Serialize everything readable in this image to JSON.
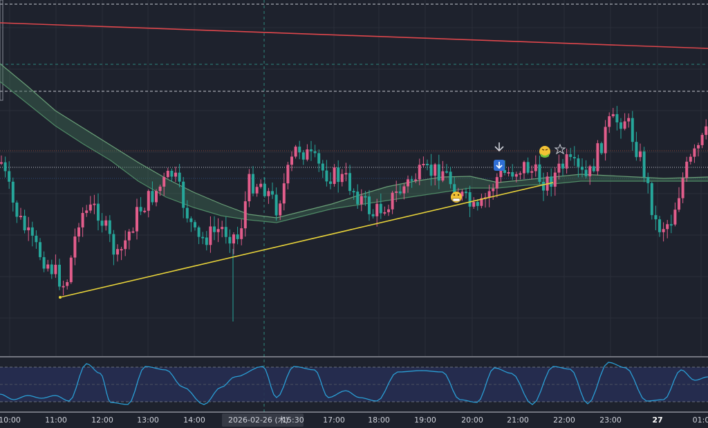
{
  "chart_data": {
    "type": "candlestick",
    "x_ticks": [
      "10:00",
      "11:00",
      "12:00",
      "13:00",
      "14:00",
      "15:30",
      "17:00",
      "18:00",
      "19:00",
      "20:00",
      "21:00",
      "22:00",
      "23:00",
      "27",
      "01:0"
    ],
    "crosshair": {
      "date": "2026-02-26 (木)",
      "time": "15:30"
    },
    "candle_colors": {
      "up": "#e25d8b",
      "down": "#26a69a"
    },
    "colors": {
      "background": "#1e222d",
      "grid": "#2a2e39",
      "trendline_red": "#e0474c",
      "trendline_yellow": "#e8d33a",
      "ma_fill": "#3f6b55",
      "oscillator": "#2a9fd6",
      "oscillator_band": "#262e52"
    },
    "annotations": [
      "arrow-down-icon",
      "download-badge-icon",
      "grimace-emoji",
      "sick-emoji",
      "star-icon"
    ],
    "oscillator": {
      "type": "line",
      "range": [
        0,
        100
      ],
      "bands": [
        20,
        80
      ]
    }
  }
}
